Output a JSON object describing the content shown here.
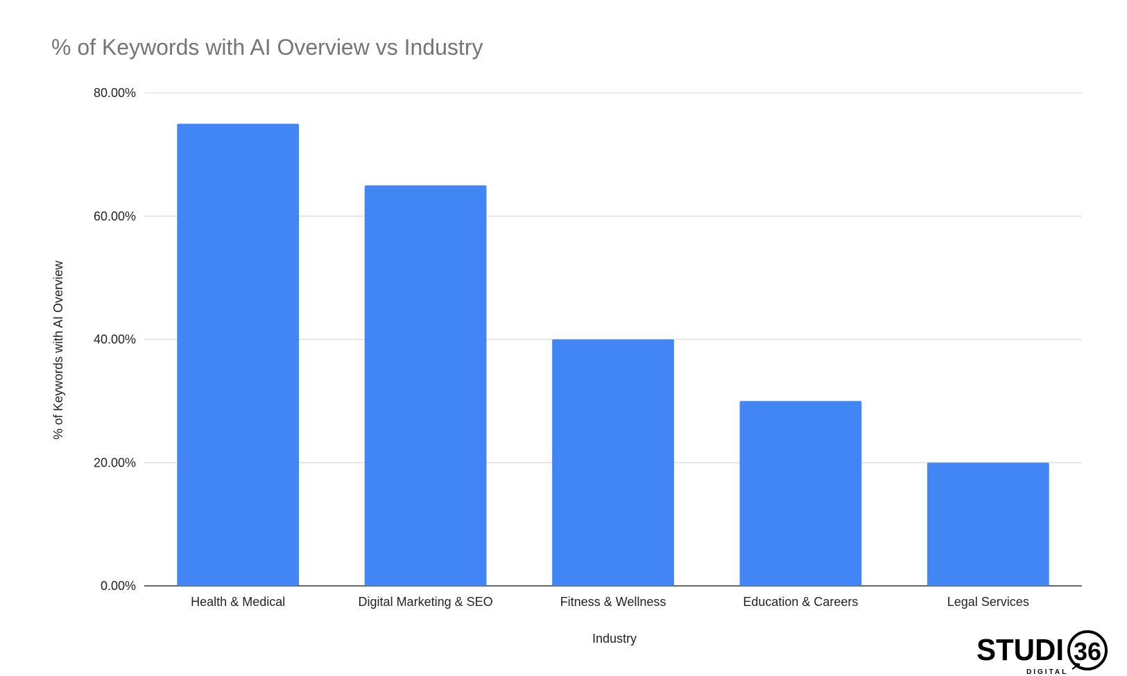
{
  "chart_data": {
    "type": "bar",
    "title": "% of Keywords with AI Overview vs Industry",
    "xlabel": "Industry",
    "ylabel": "% of Keywords with AI Overview",
    "categories": [
      "Health & Medical",
      "Digital Marketing & SEO",
      "Fitness & Wellness",
      "Education & Careers",
      "Legal Services"
    ],
    "values": [
      75,
      65,
      40,
      30,
      20
    ],
    "ylim": [
      0,
      80
    ],
    "yticks": [
      "0.00%",
      "20.00%",
      "40.00%",
      "60.00%",
      "80.00%"
    ],
    "grid": true,
    "legend": "none",
    "bar_color": "#4285f4"
  },
  "logo": {
    "name": "STUDIO 36 DIGITAL",
    "main": "STUDI",
    "number": "36",
    "sub": "DIGITAL"
  }
}
